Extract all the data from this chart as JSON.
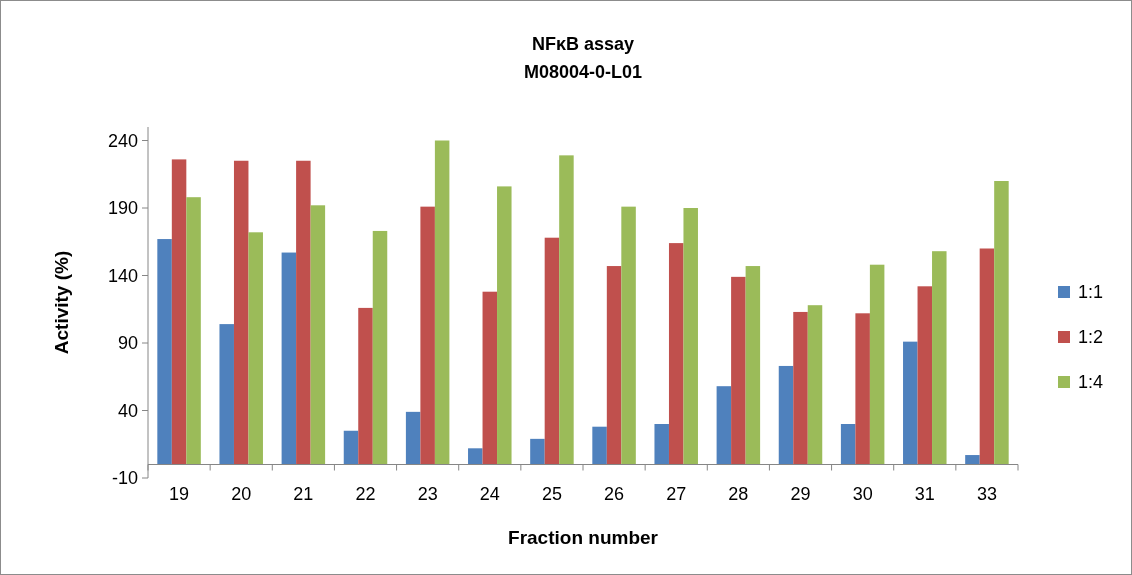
{
  "chart_data": {
    "type": "bar",
    "title": "NFκB assay",
    "subtitle": "M08004-0-L01",
    "xlabel": "Fraction number",
    "ylabel": "Activity (%)",
    "categories": [
      "19",
      "20",
      "21",
      "22",
      "23",
      "24",
      "25",
      "26",
      "27",
      "28",
      "29",
      "30",
      "31",
      "33"
    ],
    "series": [
      {
        "name": "1:1",
        "color": "#4f81bd",
        "values": [
          167,
          104,
          157,
          25,
          39,
          12,
          19,
          28,
          30,
          58,
          73,
          30,
          91,
          7
        ]
      },
      {
        "name": "1:2",
        "color": "#c0504d",
        "values": [
          226,
          225,
          225,
          116,
          191,
          128,
          168,
          147,
          164,
          139,
          113,
          112,
          132,
          160
        ]
      },
      {
        "name": "1:4",
        "color": "#9bbb59",
        "values": [
          198,
          172,
          192,
          173,
          240,
          206,
          229,
          191,
          190,
          147,
          118,
          148,
          158,
          210
        ]
      }
    ],
    "ylim": [
      -10,
      250
    ],
    "yticks": [
      -10,
      40,
      90,
      140,
      190,
      240
    ],
    "grid": false,
    "legend": "right"
  }
}
